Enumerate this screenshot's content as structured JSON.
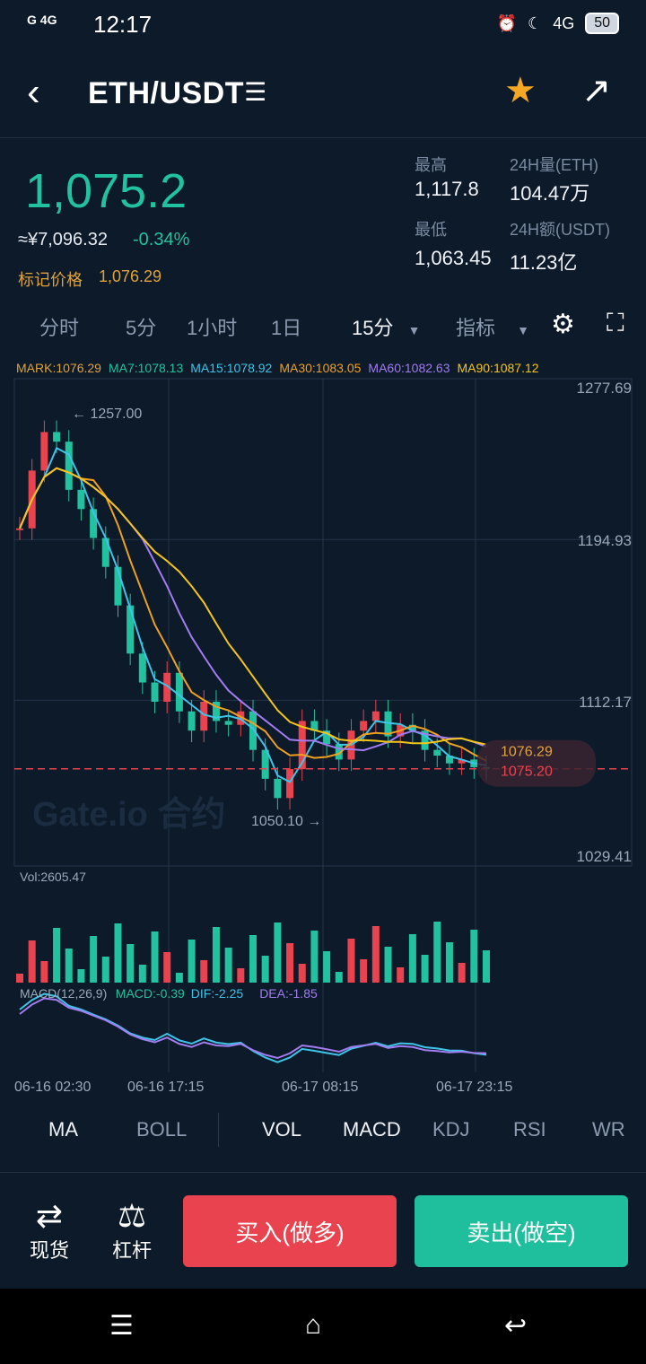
{
  "status_bar": {
    "network_left": "G 4G",
    "time": "12:17",
    "network_right": "4G",
    "battery": "50"
  },
  "header": {
    "back_icon": "chevron-left-icon",
    "pair": "ETH/USDT",
    "menu_icon": "list-icon",
    "favorite_icon": "star-icon",
    "share_icon": "share-icon"
  },
  "price": {
    "last": "1,075.2",
    "cny": "≈¥7,096.32",
    "change": "-0.34%",
    "mark_label": "标记价格",
    "mark_value": "1,076.29"
  },
  "stats": {
    "high_label": "最高",
    "high_value": "1,117.8",
    "vol_label": "24H量(ETH)",
    "vol_value": "104.47万",
    "low_label": "最低",
    "low_value": "1,063.45",
    "amount_label": "24H额(USDT)",
    "amount_value": "11.23亿"
  },
  "timeframes": {
    "items": [
      "分时",
      "5分",
      "1小时",
      "1日"
    ],
    "selected": "15分",
    "indicator": "指标"
  },
  "legend": {
    "mark": "MARK:1076.29",
    "ma7": "MA7:1078.13",
    "ma15": "MA15:1078.92",
    "ma30": "MA30:1083.05",
    "ma60": "MA60:1082.63",
    "ma90": "MA90:1087.12"
  },
  "colors": {
    "up": "#e8434e",
    "down": "#22c2a0",
    "mark": "#e0a33a",
    "ma7": "#ffffff",
    "ma15": "#3fc4e8",
    "ma30": "#f0a020",
    "ma60": "#a27cf0",
    "ma90": "#f5c518"
  },
  "chart_data": {
    "type": "candlestick",
    "y_ticks": [
      "1277.69",
      "1194.93",
      "1112.17",
      "1029.41"
    ],
    "ylim": [
      1029.41,
      1277.69
    ],
    "high_annotation": "1257.00",
    "low_annotation": "1050.10",
    "mark_tag": "1076.29",
    "last_tag": "1075.20",
    "watermark": "Gate.io 合约",
    "x_ticks": [
      "06-16 02:30",
      "06-16 17:15",
      "06-17 08:15",
      "06-17 23:15"
    ],
    "close_series": [
      1200,
      1230,
      1250,
      1245,
      1220,
      1210,
      1195,
      1180,
      1160,
      1135,
      1120,
      1110,
      1125,
      1105,
      1095,
      1110,
      1100,
      1098,
      1105,
      1085,
      1070,
      1060,
      1075,
      1100,
      1095,
      1088,
      1080,
      1095,
      1100,
      1105,
      1092,
      1098,
      1095,
      1085,
      1082,
      1078,
      1080,
      1076,
      1075.2
    ],
    "vol_label": "Vol:2605.47",
    "macd_label": "MACD(12,26,9)",
    "macd_value": "MACD:-0.39",
    "dif_value": "DIF:-2.25",
    "dea_value": "DEA:-1.85"
  },
  "indicator_tabs": [
    "MA",
    "BOLL",
    "VOL",
    "MACD",
    "KDJ",
    "RSI",
    "WR"
  ],
  "bottom": {
    "spot_icon": "exchange-icon",
    "spot_label": "现货",
    "leverage_icon": "scale-icon",
    "leverage_label": "杠杆",
    "buy_label": "买入(做多)",
    "sell_label": "卖出(做空)"
  }
}
